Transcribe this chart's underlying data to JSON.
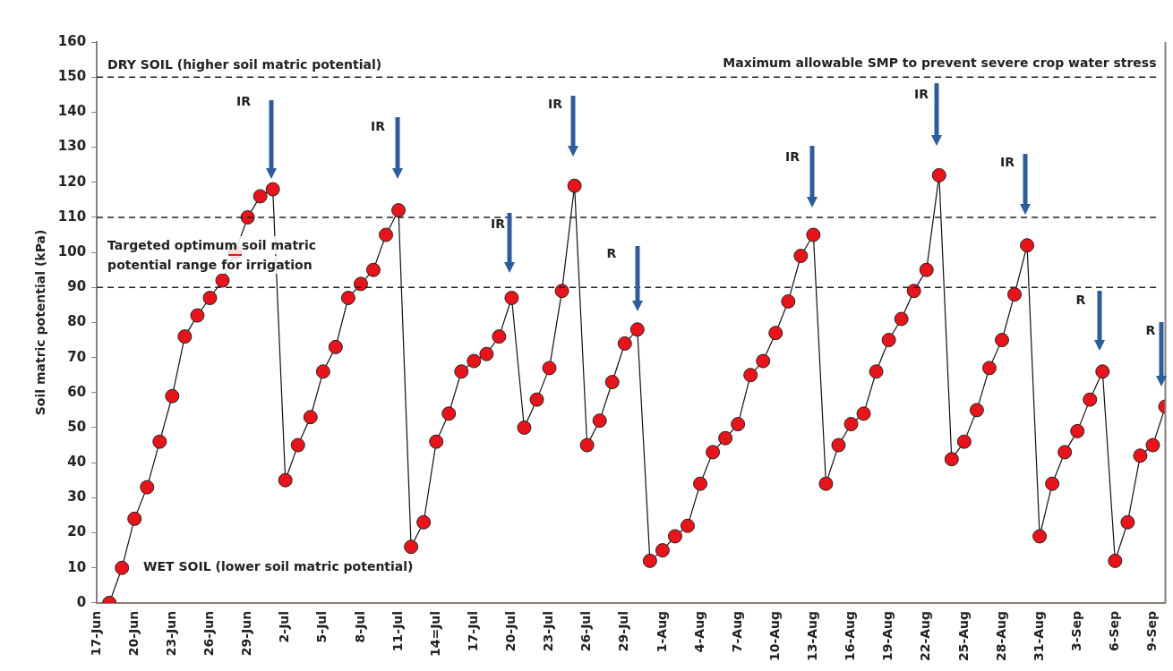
{
  "chart_data": {
    "type": "line",
    "ylabel": "Soil matric potential (kPa)",
    "x": [
      "--06-18",
      "--06-19",
      "--06-20",
      "--06-21",
      "--06-22",
      "--06-23",
      "--06-24",
      "--06-25",
      "--06-26",
      "--06-27",
      "--06-28",
      "--06-29",
      "--06-30",
      "--07-01",
      "--07-02",
      "--07-03",
      "--07-04",
      "--07-05",
      "--07-06",
      "--07-07",
      "--07-08",
      "--07-09",
      "--07-10",
      "--07-11",
      "--07-12",
      "--07-13",
      "--07-14",
      "--07-15",
      "--07-16",
      "--07-17",
      "--07-18",
      "--07-19",
      "--07-20",
      "--07-21",
      "--07-22",
      "--07-23",
      "--07-24",
      "--07-25",
      "--07-26",
      "--07-27",
      "--07-28",
      "--07-29",
      "--07-30",
      "--07-31",
      "--08-01",
      "--08-02",
      "--08-03",
      "--08-04",
      "--08-05",
      "--08-06",
      "--08-07",
      "--08-08",
      "--08-09",
      "--08-10",
      "--08-11",
      "--08-12",
      "--08-13",
      "--08-14",
      "--08-15",
      "--08-16",
      "--08-17",
      "--08-18",
      "--08-19",
      "--08-20",
      "--08-21",
      "--08-22",
      "--08-23",
      "--08-24",
      "--08-25",
      "--08-26",
      "--08-27",
      "--08-28",
      "--08-29",
      "--08-30",
      "--08-31",
      "--09-01",
      "--09-02",
      "--09-03",
      "--09-04",
      "--09-05",
      "--09-06",
      "--09-07",
      "--09-08",
      "--09-09",
      "--09-10"
    ],
    "series": [
      {
        "color": "#e8141b",
        "values": [
          0,
          10,
          24,
          33,
          46,
          59,
          76,
          82,
          87,
          92,
          100,
          110,
          116,
          118,
          35,
          45,
          53,
          66,
          73,
          87,
          91,
          95,
          105,
          112,
          16,
          23,
          46,
          54,
          66,
          69,
          71,
          76,
          87,
          50,
          58,
          67,
          89,
          119,
          45,
          52,
          63,
          74,
          78,
          12,
          15,
          19,
          22,
          34,
          43,
          47,
          51,
          65,
          69,
          77,
          86,
          99,
          105,
          34,
          45,
          51,
          54,
          66,
          75,
          81,
          89,
          95,
          122,
          41,
          46,
          55,
          67,
          75,
          88,
          102,
          19,
          34,
          43,
          49,
          58,
          66,
          12,
          23,
          42,
          45,
          56
        ]
      }
    ],
    "marker": "circle",
    "line_style": "solid",
    "xlim": [
      "--06-17",
      "--09-10"
    ],
    "xticks": [
      {
        "value": "--06-17",
        "label": "17-Jun"
      },
      {
        "value": "--06-20",
        "label": "20-Jun"
      },
      {
        "value": "--06-23",
        "label": "23-Jun"
      },
      {
        "value": "--06-26",
        "label": "26-Jun"
      },
      {
        "value": "--06-29",
        "label": "29-Jun"
      },
      {
        "value": "--07-02",
        "label": "2-Jul"
      },
      {
        "value": "--07-05",
        "label": "5-Jul"
      },
      {
        "value": "--07-08",
        "label": "8-Jul"
      },
      {
        "value": "--07-11",
        "label": "11-Jul"
      },
      {
        "value": "--07-14",
        "label": "14=Jul"
      },
      {
        "value": "--07-17",
        "label": "17-Jul"
      },
      {
        "value": "--07-20",
        "label": "20-Jul"
      },
      {
        "value": "--07-23",
        "label": "23-Jul"
      },
      {
        "value": "--07-26",
        "label": "26-Jul"
      },
      {
        "value": "--07-29",
        "label": "29-Jul"
      },
      {
        "value": "--08-01",
        "label": "1-Aug"
      },
      {
        "value": "--08-04",
        "label": "4-Aug"
      },
      {
        "value": "--08-07",
        "label": "7-Aug"
      },
      {
        "value": "--08-10",
        "label": "10-Aug"
      },
      {
        "value": "--08-13",
        "label": "13-Aug"
      },
      {
        "value": "--08-16",
        "label": "16-Aug"
      },
      {
        "value": "--08-19",
        "label": "19-Aug"
      },
      {
        "value": "--08-22",
        "label": "22-Aug"
      },
      {
        "value": "--08-25",
        "label": "25-Aug"
      },
      {
        "value": "--08-28",
        "label": "28-Aug"
      },
      {
        "value": "--08-31",
        "label": "31-Aug"
      },
      {
        "value": "--09-03",
        "label": "3-Sep"
      },
      {
        "value": "--09-06",
        "label": "6-Sep"
      },
      {
        "value": "--09-09",
        "label": "9-Sep"
      }
    ],
    "ylim": [
      0,
      160
    ],
    "yticks": [
      0,
      10,
      20,
      30,
      40,
      50,
      60,
      70,
      80,
      90,
      100,
      110,
      120,
      130,
      140,
      150,
      160
    ],
    "ref_lines": [
      {
        "axis": "y",
        "value": 150,
        "label": "Maximum allowable SMP to prevent severe crop water stress",
        "color": "#222222",
        "line_style": "dashed"
      },
      {
        "axis": "y",
        "value": 110,
        "color": "#222222",
        "line_style": "dashed"
      },
      {
        "axis": "y",
        "value": 90,
        "color": "#222222",
        "line_style": "dashed"
      }
    ],
    "annotations": [
      "DRY SOIL (higher soil matric potential)",
      "WET SOIL (lower soil matric potential)",
      "Targeted optimum soil matric potential range for irrigation",
      "IR",
      "IR",
      "IR",
      "IR",
      "R",
      "IR",
      "IR",
      "IR",
      "R",
      "R"
    ]
  }
}
